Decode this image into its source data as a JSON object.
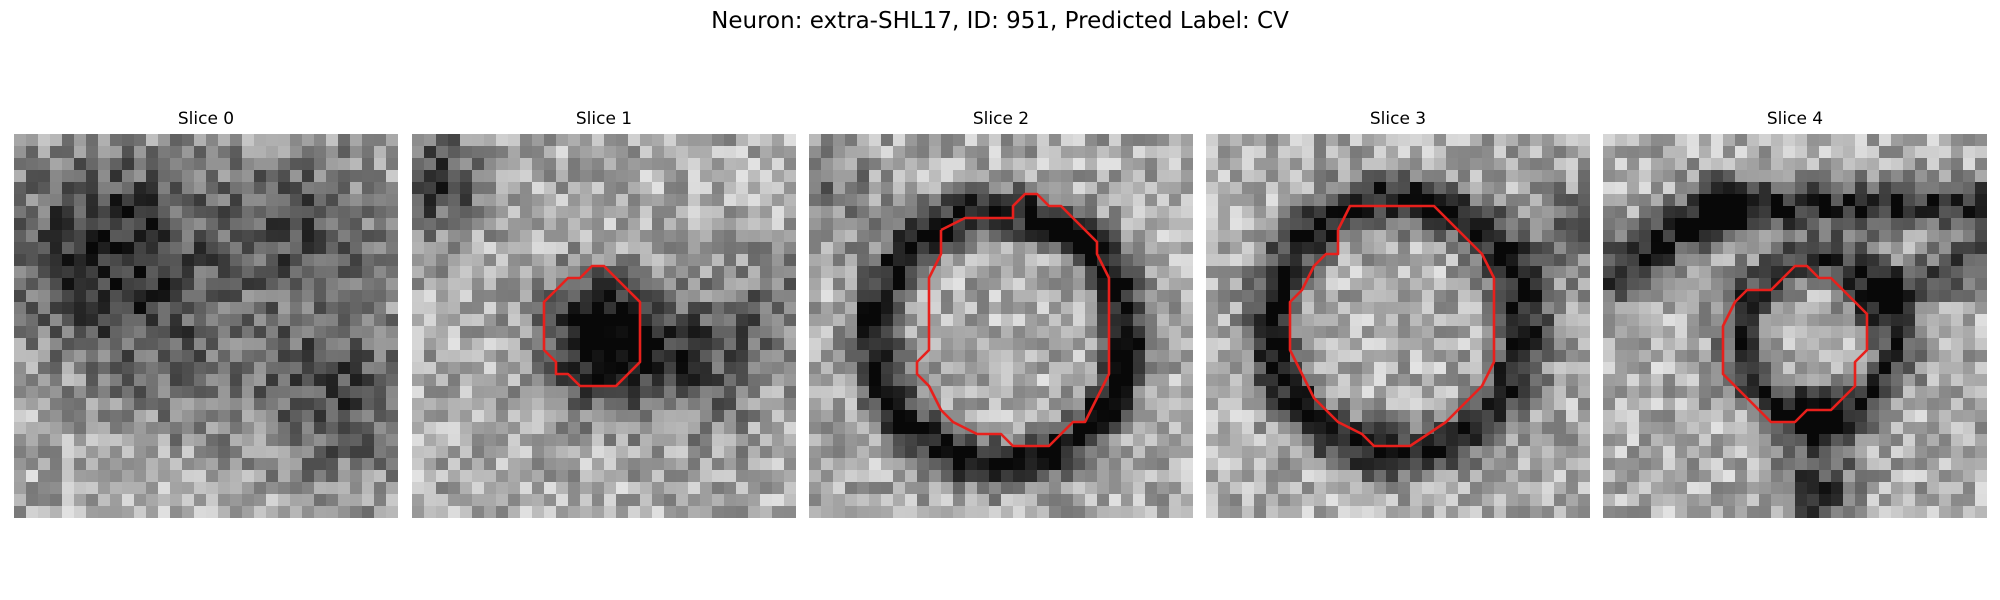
{
  "figure": {
    "title": "Neuron: extra-SHL17, ID: 951, Predicted Label: CV",
    "contour_color": "#e8201c"
  },
  "slices": [
    {
      "title": "Slice 0",
      "has_contour": false
    },
    {
      "title": "Slice 1",
      "has_contour": true
    },
    {
      "title": "Slice 2",
      "has_contour": true
    },
    {
      "title": "Slice 3",
      "has_contour": true
    },
    {
      "title": "Slice 4",
      "has_contour": true
    }
  ]
}
